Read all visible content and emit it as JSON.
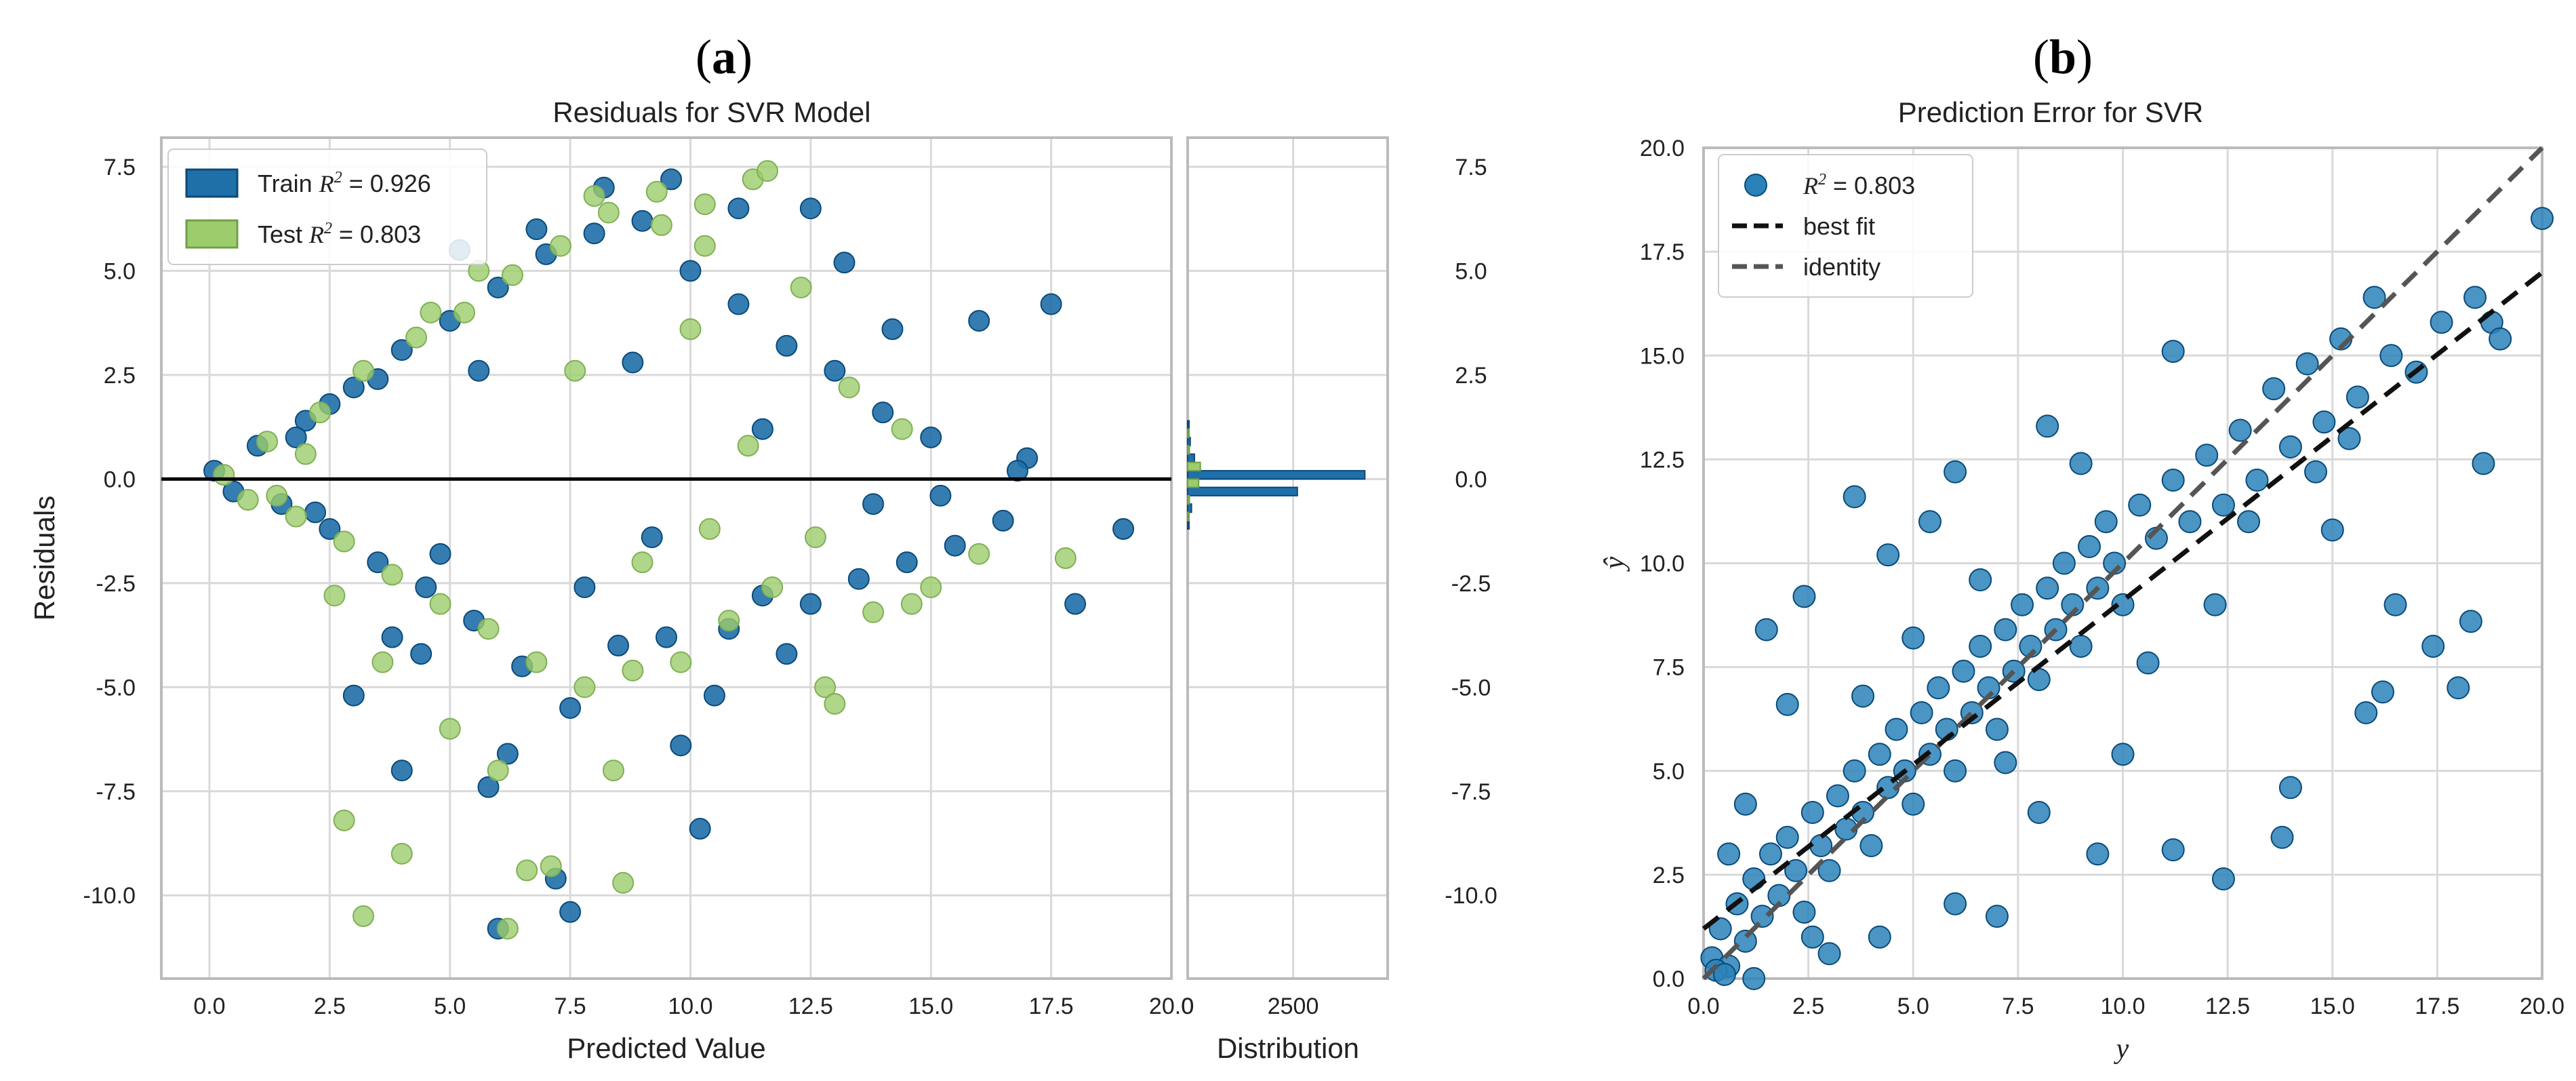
{
  "panels": {
    "a": {
      "label_open": "(",
      "label_letter": "a",
      "label_close": ")"
    },
    "b": {
      "label_open": "(",
      "label_letter": "b",
      "label_close": ")"
    }
  },
  "colors": {
    "train": "#1f6fa8",
    "train_edge": "#0a4a7a",
    "test": "#9ccc6c",
    "grid": "#d9d9d9",
    "frame": "#bbbbbb",
    "zero_line": "#000000",
    "scatter_b": "#2a82b9",
    "best_fit": "#111111",
    "identity": "#555555"
  },
  "chart_data": [
    {
      "type": "scatter",
      "id": "residuals",
      "title": "Residuals for SVR Model",
      "xlabel": "Predicted Value",
      "ylabel": "Residuals",
      "xlim": [
        -1.0,
        20.0
      ],
      "ylim": [
        -12.0,
        8.2
      ],
      "xticks": [
        "0.0",
        "2.5",
        "5.0",
        "7.5",
        "10.0",
        "12.5",
        "15.0",
        "17.5",
        "20.0"
      ],
      "xtick_values": [
        0,
        2.5,
        5,
        7.5,
        10,
        12.5,
        15,
        17.5,
        20
      ],
      "yticks": [
        "7.5",
        "5.0",
        "2.5",
        "0.0",
        "-2.5",
        "-5.0",
        "-7.5",
        "-10.0"
      ],
      "ytick_values": [
        7.5,
        5,
        2.5,
        0,
        -2.5,
        -5,
        -7.5,
        -10
      ],
      "legend": {
        "position": "top-left",
        "entries": [
          {
            "prefix": "Train ",
            "r2_symbol": "R",
            "r2_sup": "2",
            "value_text": " = 0.926"
          },
          {
            "prefix": "Test ",
            "r2_symbol": "R",
            "r2_sup": "2",
            "value_text": " = 0.803"
          }
        ]
      },
      "series": [
        {
          "name": "Train",
          "r2": 0.926,
          "points": [
            [
              0.1,
              0.2
            ],
            [
              0.5,
              -0.3
            ],
            [
              1.0,
              0.8
            ],
            [
              1.5,
              -0.6
            ],
            [
              2.0,
              1.4
            ],
            [
              2.5,
              -1.2
            ],
            [
              3.0,
              2.2
            ],
            [
              3.5,
              -2.0
            ],
            [
              4.0,
              3.1
            ],
            [
              4.5,
              -2.6
            ],
            [
              5.0,
              3.8
            ],
            [
              5.5,
              -3.4
            ],
            [
              6.0,
              4.6
            ],
            [
              6.5,
              -4.5
            ],
            [
              7.0,
              5.4
            ],
            [
              7.5,
              -5.5
            ],
            [
              8.0,
              5.9
            ],
            [
              8.5,
              -4.0
            ],
            [
              9.0,
              6.2
            ],
            [
              9.5,
              -3.8
            ],
            [
              10.0,
              5.0
            ],
            [
              10.5,
              -5.2
            ],
            [
              11.0,
              4.2
            ],
            [
              11.5,
              -2.8
            ],
            [
              12.0,
              3.2
            ],
            [
              12.5,
              -3.0
            ],
            [
              13.0,
              2.6
            ],
            [
              13.5,
              -2.4
            ],
            [
              14.0,
              1.6
            ],
            [
              14.5,
              -2.0
            ],
            [
              15.0,
              1.0
            ],
            [
              15.5,
              -1.6
            ],
            [
              16.0,
              3.8
            ],
            [
              16.5,
              -1.0
            ],
            [
              17.0,
              0.5
            ],
            [
              17.5,
              4.2
            ],
            [
              18.0,
              -3.0
            ],
            [
              19.0,
              -1.2
            ],
            [
              6.0,
              -10.8
            ],
            [
              7.5,
              -10.4
            ],
            [
              7.2,
              -9.6
            ],
            [
              5.8,
              -7.4
            ],
            [
              4.0,
              -7.0
            ],
            [
              3.0,
              -5.2
            ],
            [
              10.2,
              -8.4
            ],
            [
              12.5,
              6.5
            ],
            [
              13.2,
              5.2
            ],
            [
              11.0,
              6.5
            ],
            [
              9.6,
              7.2
            ],
            [
              5.2,
              5.5
            ],
            [
              6.8,
              6.0
            ],
            [
              8.2,
              7.0
            ],
            [
              2.5,
              1.8
            ],
            [
              3.5,
              2.4
            ],
            [
              1.8,
              1.0
            ],
            [
              2.2,
              -0.8
            ],
            [
              4.8,
              -1.8
            ],
            [
              7.8,
              -2.6
            ],
            [
              9.2,
              -1.4
            ],
            [
              11.5,
              1.2
            ],
            [
              13.8,
              -0.6
            ],
            [
              15.2,
              -0.4
            ],
            [
              16.8,
              0.2
            ],
            [
              8.8,
              2.8
            ],
            [
              6.2,
              -6.6
            ],
            [
              12.0,
              -4.2
            ],
            [
              14.2,
              3.6
            ],
            [
              10.8,
              -3.6
            ],
            [
              4.4,
              -4.2
            ],
            [
              5.6,
              2.6
            ],
            [
              3.8,
              -3.8
            ],
            [
              9.8,
              -6.4
            ]
          ]
        },
        {
          "name": "Test",
          "r2": 0.803,
          "points": [
            [
              0.3,
              0.1
            ],
            [
              0.8,
              -0.5
            ],
            [
              1.2,
              0.9
            ],
            [
              1.8,
              -0.9
            ],
            [
              2.3,
              1.6
            ],
            [
              2.8,
              -1.5
            ],
            [
              3.2,
              2.6
            ],
            [
              3.8,
              -2.3
            ],
            [
              4.3,
              3.4
            ],
            [
              4.8,
              -3.0
            ],
            [
              5.3,
              4.0
            ],
            [
              5.8,
              -3.6
            ],
            [
              6.3,
              4.9
            ],
            [
              6.8,
              -4.4
            ],
            [
              7.3,
              5.6
            ],
            [
              7.8,
              -5.0
            ],
            [
              8.3,
              6.4
            ],
            [
              8.8,
              -4.6
            ],
            [
              9.3,
              6.9
            ],
            [
              9.8,
              -4.4
            ],
            [
              10.3,
              5.6
            ],
            [
              10.8,
              -3.4
            ],
            [
              11.3,
              7.2
            ],
            [
              11.7,
              -2.6
            ],
            [
              12.3,
              4.6
            ],
            [
              12.8,
              -5.0
            ],
            [
              13.3,
              2.2
            ],
            [
              13.8,
              -3.2
            ],
            [
              14.4,
              1.2
            ],
            [
              15.0,
              -2.6
            ],
            [
              16.0,
              -1.8
            ],
            [
              17.8,
              -1.9
            ],
            [
              3.2,
              -10.5
            ],
            [
              4.0,
              -9.0
            ],
            [
              2.8,
              -8.2
            ],
            [
              6.6,
              -9.4
            ],
            [
              7.1,
              -9.3
            ],
            [
              8.6,
              -9.7
            ],
            [
              6.2,
              -10.8
            ],
            [
              10.3,
              6.6
            ],
            [
              9.4,
              6.1
            ],
            [
              11.6,
              7.4
            ],
            [
              8.0,
              6.8
            ],
            [
              5.6,
              5.0
            ],
            [
              4.6,
              4.0
            ],
            [
              2.6,
              -2.8
            ],
            [
              3.6,
              -4.4
            ],
            [
              7.6,
              2.6
            ],
            [
              9.0,
              -2.0
            ],
            [
              10.4,
              -1.2
            ],
            [
              11.2,
              0.8
            ],
            [
              12.6,
              -1.4
            ],
            [
              1.4,
              -0.4
            ],
            [
              2.0,
              0.6
            ],
            [
              6.0,
              -7.0
            ],
            [
              8.4,
              -7.0
            ],
            [
              5.0,
              -6.0
            ],
            [
              13.0,
              -5.4
            ],
            [
              14.6,
              -3.0
            ],
            [
              10.0,
              3.6
            ]
          ]
        }
      ]
    },
    {
      "type": "bar",
      "id": "distribution",
      "xlabel": "Distribution",
      "xticks": [
        "0",
        "2500"
      ],
      "xtick_values": [
        0,
        2500
      ],
      "ylim": [
        -12.0,
        8.2
      ],
      "yticks": [
        "7.5",
        "5.0",
        "2.5",
        "0.0",
        "-2.5",
        "-5.0",
        "-7.5",
        "-10.0"
      ],
      "ytick_values": [
        7.5,
        5,
        2.5,
        0,
        -2.5,
        -5,
        -7.5,
        -10
      ],
      "series": [
        {
          "name": "Train",
          "bins": [
            [
              -1.2,
              30
            ],
            [
              -0.8,
              90
            ],
            [
              -0.4,
              2600
            ],
            [
              0.0,
              4200
            ],
            [
              0.4,
              160
            ],
            [
              0.8,
              60
            ],
            [
              1.2,
              20
            ]
          ]
        },
        {
          "name": "Test",
          "bins": [
            [
              -1.0,
              10
            ],
            [
              -0.6,
              40
            ],
            [
              -0.2,
              260
            ],
            [
              0.2,
              300
            ],
            [
              0.6,
              40
            ],
            [
              1.0,
              10
            ]
          ]
        }
      ]
    },
    {
      "type": "scatter",
      "id": "prediction_error",
      "title": "Prediction Error for SVR",
      "xlabel": "y",
      "ylabel": "ŷ",
      "xlim": [
        0,
        20
      ],
      "ylim": [
        0,
        20
      ],
      "xticks": [
        "0.0",
        "2.5",
        "5.0",
        "7.5",
        "10.0",
        "12.5",
        "15.0",
        "17.5",
        "20.0"
      ],
      "xtick_values": [
        0,
        2.5,
        5,
        7.5,
        10,
        12.5,
        15,
        17.5,
        20
      ],
      "yticks": [
        "20.0",
        "17.5",
        "15.0",
        "12.5",
        "10.0",
        "7.5",
        "5.0",
        "2.5",
        "0.0"
      ],
      "ytick_values": [
        20,
        17.5,
        15,
        12.5,
        10,
        7.5,
        5,
        2.5,
        0
      ],
      "legend": {
        "position": "top-left",
        "entries": [
          {
            "symbol": "R",
            "sup": "2",
            "text": " = 0.803"
          },
          {
            "text": "best fit"
          },
          {
            "text": "identity"
          }
        ]
      },
      "r2": 0.803,
      "best_fit": {
        "slope": 0.79,
        "intercept": 1.2
      },
      "identity": {
        "slope": 1.0,
        "intercept": 0.0
      },
      "points": [
        [
          0.2,
          0.5
        ],
        [
          0.4,
          1.2
        ],
        [
          0.6,
          0.3
        ],
        [
          0.8,
          1.8
        ],
        [
          1.0,
          0.9
        ],
        [
          1.2,
          2.4
        ],
        [
          1.4,
          1.5
        ],
        [
          1.6,
          3.0
        ],
        [
          1.8,
          2.0
        ],
        [
          2.0,
          3.4
        ],
        [
          2.2,
          2.6
        ],
        [
          2.4,
          1.6
        ],
        [
          2.6,
          4.0
        ],
        [
          2.8,
          3.2
        ],
        [
          3.0,
          2.6
        ],
        [
          3.2,
          4.4
        ],
        [
          3.4,
          3.6
        ],
        [
          3.6,
          5.0
        ],
        [
          3.8,
          4.0
        ],
        [
          4.0,
          3.2
        ],
        [
          4.2,
          5.4
        ],
        [
          4.4,
          4.6
        ],
        [
          4.6,
          6.0
        ],
        [
          4.8,
          5.0
        ],
        [
          5.0,
          4.2
        ],
        [
          5.2,
          6.4
        ],
        [
          5.4,
          5.4
        ],
        [
          5.6,
          7.0
        ],
        [
          5.8,
          6.0
        ],
        [
          6.0,
          5.0
        ],
        [
          6.2,
          7.4
        ],
        [
          6.4,
          6.4
        ],
        [
          6.6,
          8.0
        ],
        [
          6.8,
          7.0
        ],
        [
          7.0,
          6.0
        ],
        [
          7.2,
          8.4
        ],
        [
          7.4,
          7.4
        ],
        [
          7.6,
          9.0
        ],
        [
          7.8,
          8.0
        ],
        [
          8.0,
          7.2
        ],
        [
          8.2,
          9.4
        ],
        [
          8.4,
          8.4
        ],
        [
          8.6,
          10.0
        ],
        [
          8.8,
          9.0
        ],
        [
          9.0,
          8.0
        ],
        [
          9.2,
          10.4
        ],
        [
          9.4,
          9.4
        ],
        [
          9.6,
          11.0
        ],
        [
          9.8,
          10.0
        ],
        [
          10.0,
          9.0
        ],
        [
          10.4,
          11.4
        ],
        [
          10.8,
          10.6
        ],
        [
          11.2,
          12.0
        ],
        [
          11.6,
          11.0
        ],
        [
          12.0,
          12.6
        ],
        [
          12.4,
          11.4
        ],
        [
          12.8,
          13.2
        ],
        [
          13.2,
          12.0
        ],
        [
          13.6,
          14.2
        ],
        [
          14.0,
          12.8
        ],
        [
          14.4,
          14.8
        ],
        [
          14.8,
          13.4
        ],
        [
          15.2,
          15.4
        ],
        [
          15.6,
          14.0
        ],
        [
          16.0,
          16.4
        ],
        [
          16.4,
          15.0
        ],
        [
          17.0,
          14.6
        ],
        [
          17.6,
          15.8
        ],
        [
          18.4,
          16.4
        ],
        [
          18.8,
          15.8
        ],
        [
          20.0,
          18.3
        ],
        [
          1.5,
          8.4
        ],
        [
          2.4,
          9.2
        ],
        [
          3.6,
          11.6
        ],
        [
          4.4,
          10.2
        ],
        [
          5.4,
          11.0
        ],
        [
          6.0,
          12.2
        ],
        [
          8.2,
          13.3
        ],
        [
          11.2,
          15.1
        ],
        [
          3.0,
          0.6
        ],
        [
          4.2,
          1.0
        ],
        [
          6.0,
          1.8
        ],
        [
          7.0,
          1.5
        ],
        [
          9.4,
          3.0
        ],
        [
          11.2,
          3.1
        ],
        [
          13.8,
          3.4
        ],
        [
          14.0,
          4.6
        ],
        [
          15.8,
          6.4
        ],
        [
          16.2,
          6.9
        ],
        [
          18.0,
          7.0
        ],
        [
          18.3,
          8.6
        ],
        [
          12.4,
          2.4
        ],
        [
          10.0,
          5.4
        ],
        [
          8.0,
          4.0
        ],
        [
          15.0,
          10.8
        ],
        [
          16.5,
          9.0
        ],
        [
          17.4,
          8.0
        ],
        [
          2.0,
          6.6
        ],
        [
          1.0,
          4.2
        ],
        [
          0.6,
          3.0
        ],
        [
          0.3,
          0.2
        ],
        [
          0.5,
          0.1
        ],
        [
          1.2,
          0.0
        ],
        [
          2.6,
          1.0
        ],
        [
          3.8,
          6.8
        ],
        [
          5.0,
          8.2
        ],
        [
          6.6,
          9.6
        ],
        [
          7.2,
          5.2
        ],
        [
          9.0,
          12.4
        ],
        [
          10.6,
          7.6
        ],
        [
          12.2,
          9.0
        ],
        [
          13.0,
          11.0
        ],
        [
          14.6,
          12.2
        ],
        [
          15.4,
          13.0
        ],
        [
          18.6,
          12.4
        ],
        [
          19.0,
          15.4
        ]
      ]
    }
  ]
}
